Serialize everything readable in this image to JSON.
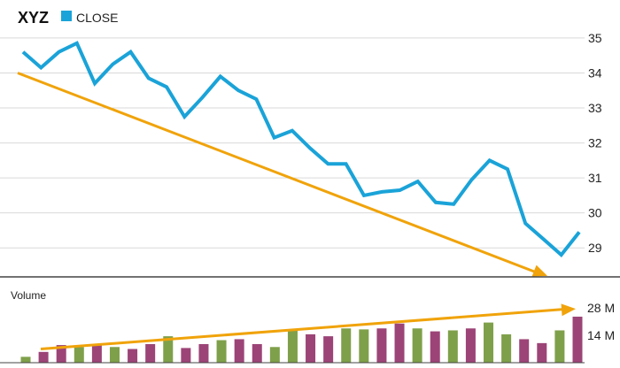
{
  "chart_data": [
    {
      "type": "line",
      "title": "XYZ",
      "legend": {
        "label": "CLOSE",
        "placement": "top-left"
      },
      "series": [
        {
          "name": "CLOSE",
          "values": [
            34.6,
            34.15,
            34.6,
            34.85,
            33.7,
            34.25,
            34.6,
            33.85,
            33.6,
            32.75,
            33.3,
            33.9,
            33.5,
            33.25,
            32.15,
            32.35,
            31.85,
            31.4,
            31.4,
            30.5,
            30.6,
            30.65,
            30.9,
            30.3,
            30.25,
            30.95,
            31.5,
            31.25,
            29.7,
            29.25,
            28.8,
            29.45
          ]
        }
      ],
      "yticks": [
        29,
        30,
        31,
        32,
        33,
        34,
        35
      ],
      "ylim": [
        28.5,
        35.2
      ],
      "grid": true,
      "trend": {
        "from": 34.0,
        "to": 28.2,
        "direction": "down"
      },
      "colors": {
        "line": "#1aa3d8",
        "trend": "#f0a30a",
        "grid": "#d9d9d9"
      }
    },
    {
      "type": "bar",
      "title": "Volume",
      "values": [
        3,
        5.5,
        9,
        8,
        9.5,
        8,
        7,
        9.5,
        13.5,
        7.5,
        9.5,
        11.5,
        12,
        9.5,
        8,
        17,
        14.5,
        13.5,
        17.5,
        17,
        17.5,
        20,
        17.5,
        16,
        16.5,
        17.5,
        20.5,
        14.5,
        12,
        10,
        16.5,
        23.5
      ],
      "bar_colors": [
        "green",
        "purple",
        "purple",
        "green",
        "purple",
        "green",
        "purple",
        "purple",
        "green",
        "purple",
        "purple",
        "green",
        "purple",
        "purple",
        "green",
        "green",
        "purple",
        "purple",
        "green",
        "green",
        "purple",
        "purple",
        "green",
        "purple",
        "green",
        "purple",
        "green",
        "green",
        "purple",
        "purple",
        "green",
        "purple"
      ],
      "yticks": [
        {
          "value": 14,
          "label": "14 M"
        },
        {
          "value": 28,
          "label": "28 M"
        }
      ],
      "ylim": [
        0,
        28
      ],
      "trend": {
        "from": 7,
        "to": 27.5,
        "direction": "up"
      },
      "colors": {
        "green": "#7fa04a",
        "purple": "#9c4477",
        "trend": "#f0a30a"
      }
    }
  ]
}
